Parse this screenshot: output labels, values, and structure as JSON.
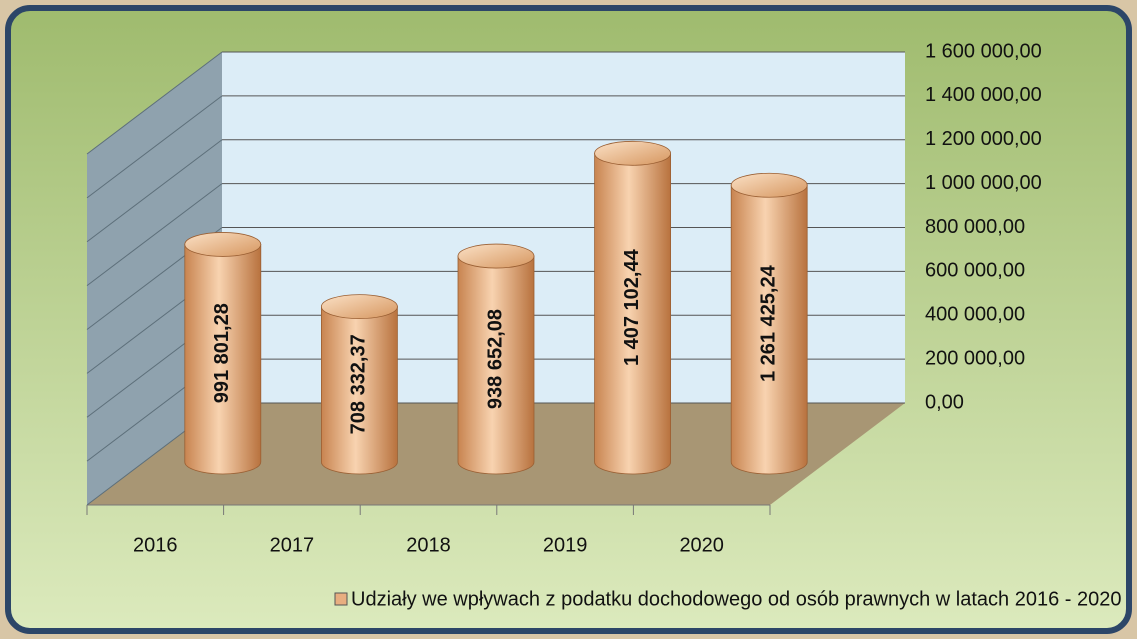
{
  "chart_data": {
    "type": "bar3d",
    "categories": [
      "2016",
      "2017",
      "2018",
      "2019",
      "2020"
    ],
    "series": [
      {
        "name": "Udziały we wpływach z podatku dochodowego od osób prawnych w latach 2016 - 2020",
        "color": "#e8ae80",
        "values": [
          991801.28,
          708332.37,
          938652.08,
          1407102.44,
          1261425.24
        ],
        "value_labels": [
          "991 801,28",
          "708 332,37",
          "938 652,08",
          "1 407 102,44",
          "1 261 425,24"
        ]
      }
    ],
    "ylim": [
      0,
      1600000
    ],
    "yticks": [
      {
        "value": 0,
        "label": "0,00"
      },
      {
        "value": 200000,
        "label": "200 000,00"
      },
      {
        "value": 400000,
        "label": "400 000,00"
      },
      {
        "value": 600000,
        "label": "600 000,00"
      },
      {
        "value": 800000,
        "label": "800 000,00"
      },
      {
        "value": 1000000,
        "label": "1 000 000,00"
      },
      {
        "value": 1200000,
        "label": "1 200 000,00"
      },
      {
        "value": 1400000,
        "label": "1 400 000,00"
      },
      {
        "value": 1600000,
        "label": "1 600 000,00"
      }
    ],
    "grid": true,
    "legend": "bottom"
  }
}
